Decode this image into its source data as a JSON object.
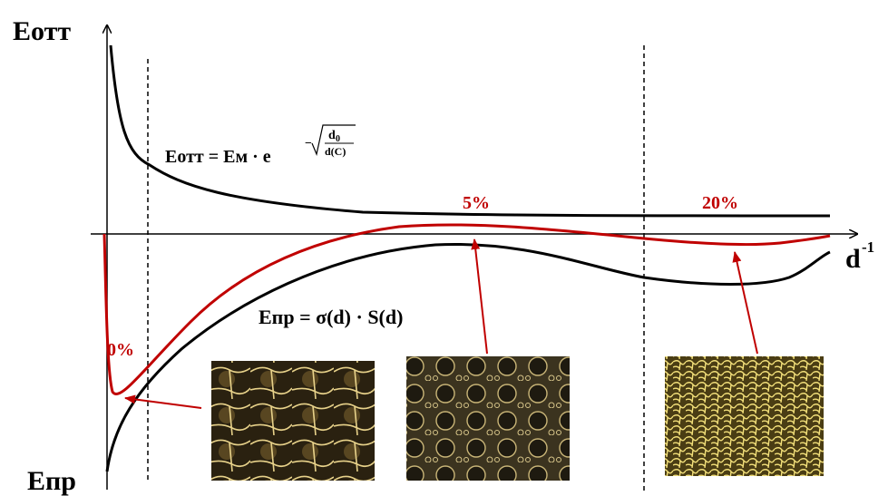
{
  "axes": {
    "y_top_label": "Еотт",
    "y_bottom_label": "Епр",
    "x_label": "d",
    "x_label_sup": "-1"
  },
  "formula_top": {
    "lhs": "Еотт = Ем · e",
    "exp_sign": "−",
    "numerator": "d",
    "numerator_sub": "0",
    "denominator": "d(C)"
  },
  "formula_bottom": "Епр = σ(d) · S(d)",
  "labels": [
    "0%",
    "5%",
    "20%"
  ]
}
